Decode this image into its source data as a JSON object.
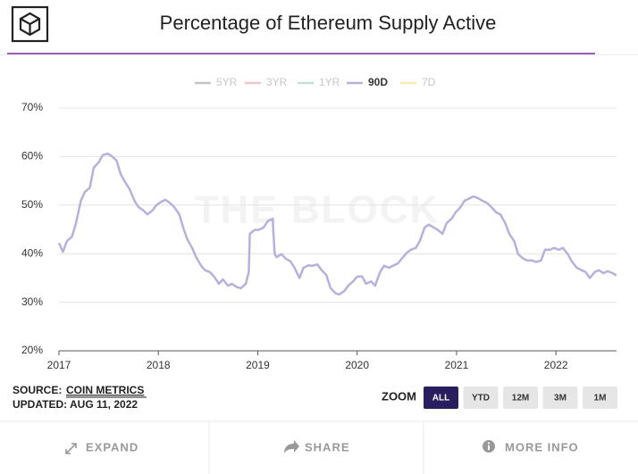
{
  "header": {
    "title": "Percentage of Ethereum Supply Active"
  },
  "chart_data": {
    "type": "line",
    "watermark": "THE BLOCK",
    "legend_entries": [
      {
        "name": "5YR",
        "color": "#c4c4c4",
        "active": false
      },
      {
        "name": "3YR",
        "color": "#f2c4cc",
        "active": false
      },
      {
        "name": "1YR",
        "color": "#bfe3da",
        "active": false
      },
      {
        "name": "90D",
        "color": "#b8b0dc",
        "active": true
      },
      {
        "name": "7D",
        "color": "#f4eeb4",
        "active": false
      }
    ],
    "x": [
      2017.0,
      2017.04,
      2017.08,
      2017.13,
      2017.17,
      2017.22,
      2017.26,
      2017.31,
      2017.35,
      2017.4,
      2017.44,
      2017.49,
      2017.53,
      2017.58,
      2017.62,
      2017.67,
      2017.71,
      2017.76,
      2017.8,
      2017.85,
      2017.89,
      2017.94,
      2017.98,
      2018.03,
      2018.07,
      2018.12,
      2018.16,
      2018.21,
      2018.25,
      2018.29,
      2018.34,
      2018.38,
      2018.43,
      2018.47,
      2018.52,
      2018.56,
      2018.61,
      2018.65,
      2018.7,
      2018.74,
      2018.79,
      2018.83,
      2018.88,
      2018.91,
      2018.92,
      2018.97,
      2019.01,
      2019.06,
      2019.1,
      2019.15,
      2019.17,
      2019.19,
      2019.24,
      2019.28,
      2019.33,
      2019.37,
      2019.42,
      2019.46,
      2019.51,
      2019.55,
      2019.6,
      2019.64,
      2019.69,
      2019.73,
      2019.78,
      2019.82,
      2019.87,
      2019.91,
      2019.96,
      2020.0,
      2020.05,
      2020.09,
      2020.14,
      2020.18,
      2020.23,
      2020.27,
      2020.32,
      2020.36,
      2020.41,
      2020.45,
      2020.5,
      2020.54,
      2020.59,
      2020.63,
      2020.68,
      2020.72,
      2020.77,
      2020.81,
      2020.86,
      2020.9,
      2020.95,
      2020.99,
      2021.04,
      2021.08,
      2021.13,
      2021.17,
      2021.22,
      2021.26,
      2021.31,
      2021.35,
      2021.4,
      2021.44,
      2021.49,
      2021.53,
      2021.58,
      2021.62,
      2021.67,
      2021.71,
      2021.76,
      2021.8,
      2021.85,
      2021.89,
      2021.94,
      2021.98,
      2022.03,
      2022.07,
      2022.12,
      2022.16,
      2022.21,
      2022.25,
      2022.3,
      2022.34,
      2022.39,
      2022.43,
      2022.48,
      2022.52,
      2022.57,
      2022.61
    ],
    "series": [
      {
        "color": "#b8b0dc",
        "values": [
          42.2,
          40.4,
          42.6,
          43.5,
          46.2,
          50.9,
          52.7,
          53.6,
          57.7,
          58.8,
          60.3,
          60.6,
          60.1,
          59.2,
          56.4,
          54.6,
          53.3,
          50.9,
          49.6,
          48.9,
          48.1,
          48.9,
          50.0,
          50.7,
          51.1,
          50.4,
          49.6,
          48.1,
          45.4,
          43.0,
          41.2,
          39.3,
          37.5,
          36.6,
          36.2,
          35.3,
          33.8,
          34.7,
          33.4,
          33.8,
          33.1,
          32.9,
          33.8,
          36.2,
          44.1,
          44.9,
          44.9,
          45.4,
          46.7,
          47.2,
          39.9,
          39.3,
          39.9,
          39.0,
          38.4,
          37.1,
          35.0,
          37.1,
          37.6,
          37.5,
          37.8,
          36.7,
          35.6,
          33.0,
          31.9,
          31.6,
          32.3,
          33.4,
          34.3,
          35.3,
          35.3,
          33.8,
          34.3,
          33.4,
          36.2,
          37.5,
          37.1,
          37.5,
          38.0,
          39.0,
          40.2,
          40.8,
          41.2,
          42.6,
          45.4,
          46.0,
          45.4,
          44.9,
          44.1,
          46.3,
          47.2,
          48.5,
          49.6,
          50.9,
          51.4,
          51.8,
          51.4,
          50.9,
          50.4,
          49.6,
          48.5,
          48.1,
          46.3,
          44.1,
          42.6,
          39.9,
          39.0,
          38.6,
          38.6,
          38.3,
          38.6,
          40.8,
          40.8,
          41.2,
          40.8,
          41.2,
          39.9,
          38.4,
          37.1,
          36.7,
          36.2,
          35.0,
          36.2,
          36.6,
          36.0,
          36.4,
          36.0,
          35.5
        ]
      }
    ],
    "xlim": [
      2017,
      2022.61
    ],
    "xticks": [
      2017,
      2018,
      2019,
      2020,
      2021,
      2022
    ],
    "ylim": [
      20,
      70
    ],
    "yticks": [
      {
        "value": 20,
        "label": "20%"
      },
      {
        "value": 30,
        "label": "30%"
      },
      {
        "value": 40,
        "label": "40%"
      },
      {
        "value": 50,
        "label": "50%"
      },
      {
        "value": 60,
        "label": "60%"
      },
      {
        "value": 70,
        "label": "70%"
      }
    ],
    "grid": true
  },
  "source": {
    "label": "SOURCE:",
    "name": "COIN METRICS",
    "updated": "UPDATED: AUG 11, 2022"
  },
  "zoom": {
    "label": "ZOOM",
    "options": [
      "ALL",
      "YTD",
      "12M",
      "3M",
      "1M"
    ],
    "active_index": 0
  },
  "footer": {
    "buttons": [
      "EXPAND",
      "SHARE",
      "MORE INFO"
    ]
  }
}
